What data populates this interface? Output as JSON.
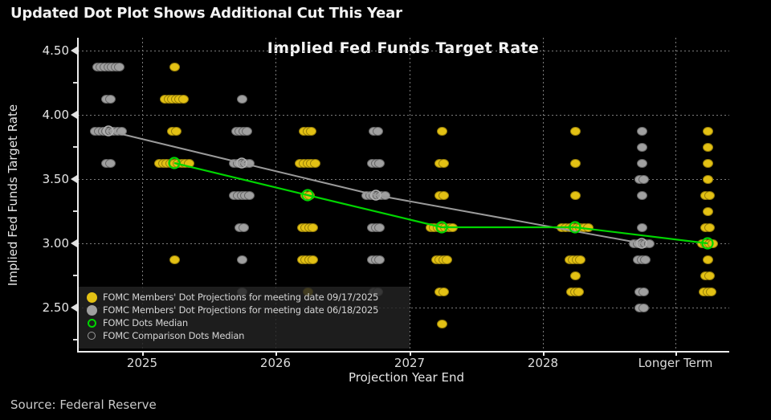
{
  "title": "Updated Dot Plot Shows Additional Cut This Year",
  "source": "Source: Federal Reserve",
  "chart": {
    "title": "Implied Fed Funds Target Rate",
    "x_axis": {
      "label": "Projection Year End"
    },
    "y_axis": {
      "label": "Implied Fed Funds Target Rate"
    }
  },
  "chart_data": {
    "type": "scatter",
    "title": "Implied Fed Funds Target Rate",
    "xlabel": "Projection Year End",
    "ylabel": "Implied Fed Funds Target Rate",
    "categories": [
      "2025",
      "2026",
      "2027",
      "2028",
      "Longer Term"
    ],
    "y_ticks": [
      {
        "label": "4.50",
        "value": 4.5
      },
      {
        "label": "4.00",
        "value": 4.0
      },
      {
        "label": "3.50",
        "value": 3.5
      },
      {
        "label": "3.00",
        "value": 3.0
      },
      {
        "label": "2.50",
        "value": 2.5
      }
    ],
    "y_minor_ticks": [
      4.25,
      3.75,
      3.25,
      2.75,
      2.25
    ],
    "ylim": [
      2.25,
      4.5
    ],
    "grid": "dotted",
    "legend_position": "bottom-left",
    "series": [
      {
        "name": "FOMC Members' Dot Projections for meeting date 09/17/2025",
        "color": "#e3c114",
        "dot_counts": {
          "2025": {
            "4.375": 1,
            "4.125": 6,
            "3.875": 2,
            "3.625": 9,
            "2.875": 1
          },
          "2026": {
            "3.875": 3,
            "3.625": 5,
            "3.375": 2,
            "3.125": 4,
            "2.875": 4,
            "2.625": 1
          },
          "2027": {
            "3.875": 1,
            "3.625": 2,
            "3.375": 2,
            "3.125": 7,
            "2.875": 4,
            "2.625": 2,
            "2.375": 1
          },
          "2028": {
            "3.875": 1,
            "3.625": 1,
            "3.375": 1,
            "3.125": 8,
            "2.875": 4,
            "2.75": 1,
            "2.625": 3
          },
          "Longer Term": {
            "3.875": 1,
            "3.75": 1,
            "3.625": 1,
            "3.5": 1,
            "3.375": 2,
            "3.25": 1,
            "3.125": 2,
            "3.0": 4,
            "2.875": 1,
            "2.75": 2,
            "2.625": 3
          }
        }
      },
      {
        "name": "FOMC Members' Dot Projections for meeting date 06/18/2025",
        "color": "#a0a0a0",
        "dot_counts": {
          "2025": {
            "4.375": 7,
            "4.125": 2,
            "3.875": 8,
            "3.625": 2
          },
          "2026": {
            "4.125": 1,
            "3.875": 4,
            "3.625": 5,
            "3.375": 5,
            "3.125": 2,
            "2.875": 1,
            "2.625": 1
          },
          "2027": {
            "3.875": 2,
            "3.625": 3,
            "3.375": 6,
            "3.125": 3,
            "2.875": 3,
            "2.625": 2
          },
          "Longer Term": {
            "3.875": 1,
            "3.75": 1,
            "3.625": 1,
            "3.5": 2,
            "3.375": 1,
            "3.125": 1,
            "3.0": 5,
            "2.875": 3,
            "2.625": 2,
            "2.5": 2
          }
        }
      }
    ],
    "medians": {
      "current": {
        "name": "FOMC Dots Median",
        "color": "#00d500",
        "points": [
          [
            "2025",
            3.625
          ],
          [
            "2026",
            3.375
          ],
          [
            "2027",
            3.125
          ],
          [
            "2028",
            3.125
          ],
          [
            "Longer Term",
            3.0
          ]
        ]
      },
      "comparison": {
        "name": "FOMC Comparison Dots Median",
        "color": "#9a9a9a",
        "points": [
          [
            "2025",
            3.875
          ],
          [
            "2026",
            3.625
          ],
          [
            "2027",
            3.375
          ],
          [
            "Longer Term",
            3.0
          ]
        ]
      }
    }
  },
  "legend": {
    "items": [
      {
        "marker": "yellow-dot",
        "label": "FOMC Members' Dot Projections for meeting date 09/17/2025"
      },
      {
        "marker": "gray-dot",
        "label": "FOMC Members' Dot Projections for meeting date 06/18/2025"
      },
      {
        "marker": "green-ring",
        "label": "FOMC Dots Median"
      },
      {
        "marker": "gray-ring",
        "label": "FOMC Comparison Dots Median"
      }
    ]
  }
}
